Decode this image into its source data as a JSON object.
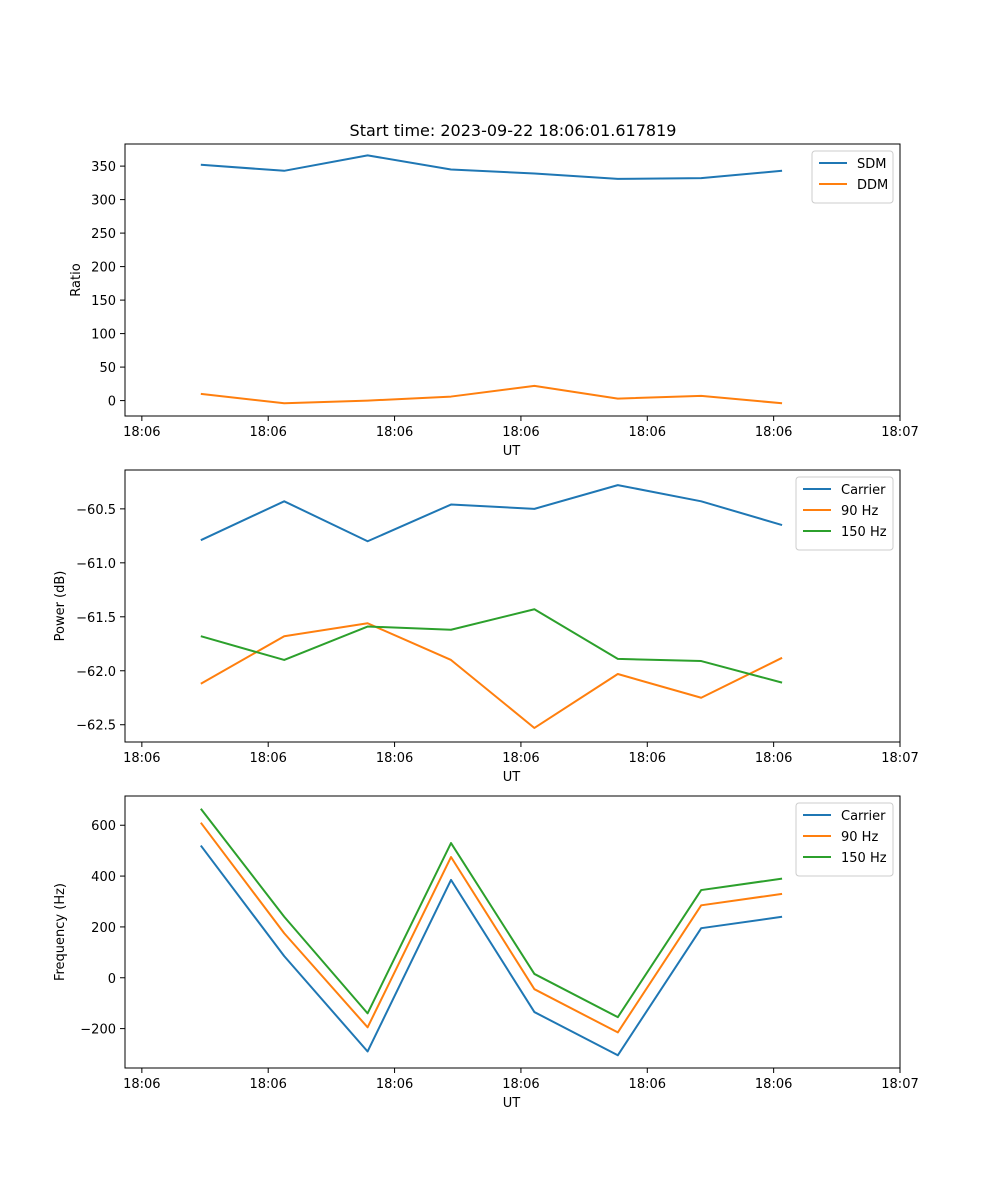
{
  "title": "Start time: 2023-09-22 18:06:01.617819",
  "colors": {
    "blue": "#1f77b4",
    "orange": "#ff7f0e",
    "green": "#2ca02c"
  },
  "chart_data": [
    {
      "type": "line",
      "xlabel": "UT",
      "ylabel": "Ratio",
      "xlim": [
        -0.2,
        9.0
      ],
      "ylim": [
        -23,
        383
      ],
      "x": [
        0.7,
        1.69,
        2.68,
        3.67,
        4.66,
        5.65,
        6.64,
        7.6
      ],
      "xticks": [
        0,
        1.5,
        3,
        4.5,
        6,
        7.5,
        9
      ],
      "xtick_labels": [
        "18:06",
        "18:06",
        "18:06",
        "18:06",
        "18:06",
        "18:06",
        "18:07"
      ],
      "yticks": [
        0,
        50,
        100,
        150,
        200,
        250,
        300,
        350
      ],
      "ytick_labels": [
        "0",
        "50",
        "100",
        "150",
        "200",
        "250",
        "300",
        "350"
      ],
      "legend_position": "top-right",
      "series": [
        {
          "name": "SDM",
          "color": "#1f77b4",
          "values": [
            352,
            343,
            366,
            345,
            339,
            331,
            332,
            343
          ]
        },
        {
          "name": "DDM",
          "color": "#ff7f0e",
          "values": [
            10,
            -4,
            0,
            6,
            22,
            3,
            7,
            -4
          ]
        }
      ]
    },
    {
      "type": "line",
      "xlabel": "UT",
      "ylabel": "Power (dB)",
      "xlim": [
        -0.2,
        9.0
      ],
      "ylim": [
        -62.66,
        -60.14
      ],
      "x": [
        0.7,
        1.69,
        2.68,
        3.67,
        4.66,
        5.65,
        6.64,
        7.6
      ],
      "xticks": [
        0,
        1.5,
        3,
        4.5,
        6,
        7.5,
        9
      ],
      "xtick_labels": [
        "18:06",
        "18:06",
        "18:06",
        "18:06",
        "18:06",
        "18:06",
        "18:07"
      ],
      "yticks": [
        -62.5,
        -62.0,
        -61.5,
        -61.0,
        -60.5
      ],
      "ytick_labels": [
        "−62.5",
        "−62.0",
        "−61.5",
        "−61.0",
        "−60.5"
      ],
      "legend_position": "top-right",
      "series": [
        {
          "name": "Carrier",
          "color": "#1f77b4",
          "values": [
            -60.79,
            -60.43,
            -60.8,
            -60.46,
            -60.5,
            -60.28,
            -60.43,
            -60.65
          ]
        },
        {
          "name": "90 Hz",
          "color": "#ff7f0e",
          "values": [
            -62.12,
            -61.68,
            -61.56,
            -61.9,
            -62.53,
            -62.03,
            -62.25,
            -61.88
          ]
        },
        {
          "name": "150 Hz",
          "color": "#2ca02c",
          "values": [
            -61.68,
            -61.9,
            -61.59,
            -61.62,
            -61.43,
            -61.89,
            -61.91,
            -62.11
          ]
        }
      ]
    },
    {
      "type": "line",
      "xlabel": "UT",
      "ylabel": "Frequency (Hz)",
      "xlim": [
        -0.2,
        9.0
      ],
      "ylim": [
        -355,
        715
      ],
      "x": [
        0.7,
        1.69,
        2.68,
        3.67,
        4.66,
        5.65,
        6.64,
        7.6
      ],
      "xticks": [
        0,
        1.5,
        3,
        4.5,
        6,
        7.5,
        9
      ],
      "xtick_labels": [
        "18:06",
        "18:06",
        "18:06",
        "18:06",
        "18:06",
        "18:06",
        "18:07"
      ],
      "yticks": [
        -200,
        0,
        200,
        400,
        600
      ],
      "ytick_labels": [
        "−200",
        "0",
        "200",
        "400",
        "600"
      ],
      "legend_position": "top-right",
      "series": [
        {
          "name": "Carrier",
          "color": "#1f77b4",
          "values": [
            520,
            85,
            -290,
            385,
            -135,
            -305,
            195,
            240
          ]
        },
        {
          "name": "90 Hz",
          "color": "#ff7f0e",
          "values": [
            610,
            175,
            -195,
            475,
            -45,
            -215,
            285,
            330
          ]
        },
        {
          "name": "150 Hz",
          "color": "#2ca02c",
          "values": [
            665,
            240,
            -140,
            530,
            15,
            -155,
            345,
            390
          ]
        }
      ]
    }
  ]
}
